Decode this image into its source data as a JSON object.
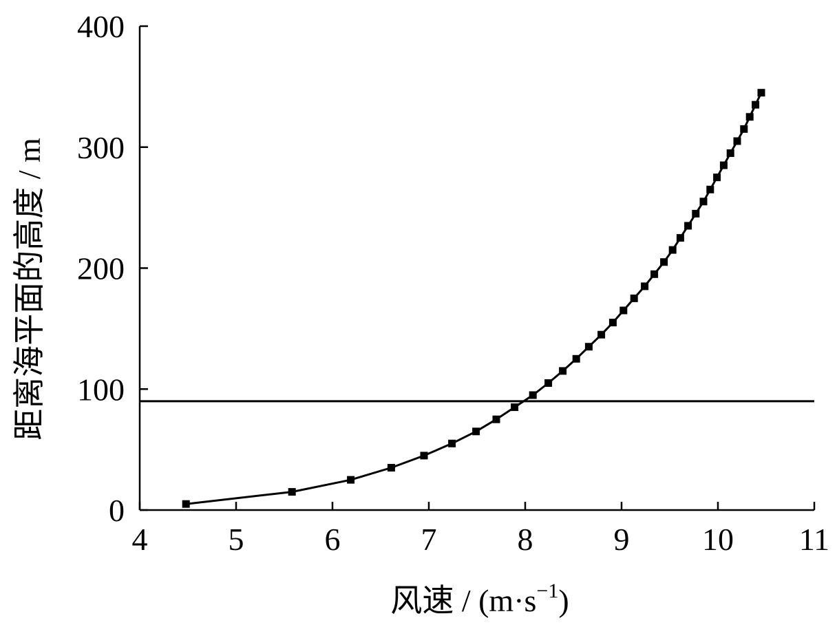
{
  "chart_data": {
    "type": "line",
    "title": "",
    "xlabel": "风速 / (m·s",
    "xlabel_sup": "−1",
    "xlabel_close": ")",
    "ylabel": "距离海平面的高度 / m",
    "xlim": [
      4,
      11
    ],
    "ylim": [
      0,
      400
    ],
    "x_ticks": [
      "4",
      "5",
      "6",
      "7",
      "8",
      "9",
      "10",
      "11"
    ],
    "y_ticks": [
      "0",
      "100",
      "200",
      "300",
      "400"
    ],
    "grid": false,
    "reference_line": {
      "orientation": "horizontal",
      "y": 90
    },
    "series": [
      {
        "marker": "square",
        "x": [
          4.48,
          5.58,
          6.19,
          6.61,
          6.95,
          7.24,
          7.49,
          7.7,
          7.89,
          8.08,
          8.24,
          8.39,
          8.53,
          8.66,
          8.79,
          8.91,
          9.02,
          9.13,
          9.24,
          9.34,
          9.44,
          9.53,
          9.61,
          9.69,
          9.77,
          9.85,
          9.92,
          9.99,
          10.06,
          10.13,
          10.2,
          10.27,
          10.33,
          10.39,
          10.45
        ],
        "y": [
          5,
          15,
          25,
          35,
          45,
          55,
          65,
          75,
          85,
          95,
          105,
          115,
          125,
          135,
          145,
          155,
          165,
          175,
          185,
          195,
          205,
          215,
          225,
          235,
          245,
          255,
          265,
          275,
          285,
          295,
          305,
          315,
          325,
          335,
          345
        ]
      }
    ]
  }
}
